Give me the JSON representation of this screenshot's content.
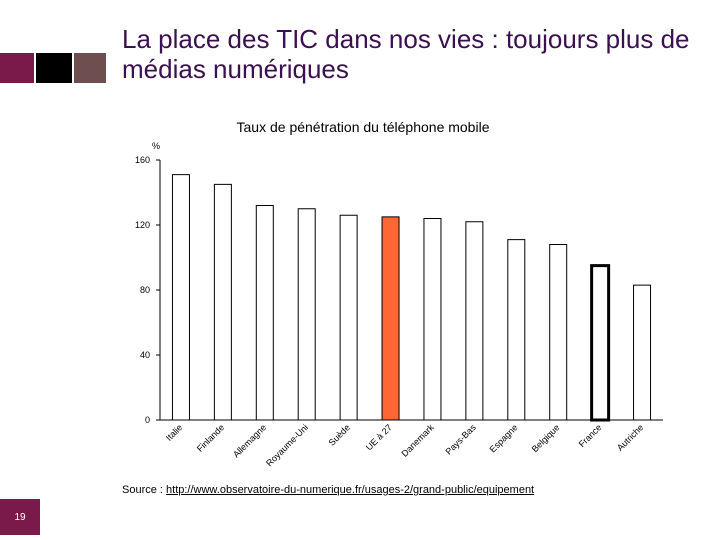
{
  "slide": {
    "title": "La place des TIC dans nos vies : toujours plus de médias numériques",
    "source_prefix": "Source : ",
    "source_url": "http://www.observatoire-du-numerique.fr/usages-2/grand-public/equipement",
    "page_number": "19"
  },
  "colors": {
    "accent": "#7a1a4a",
    "title": "#3a1050",
    "bar_default": "#ffffff",
    "bar_highlight": "#ff6633"
  },
  "chart_data": {
    "type": "bar",
    "title": "Taux de pénétration du téléphone mobile",
    "ylabel": "%",
    "ylim": [
      0,
      160
    ],
    "yticks": [
      0,
      40,
      80,
      120,
      160
    ],
    "grid": false,
    "legend": "none",
    "categories": [
      "Italie",
      "Finlande",
      "Allemagne",
      "Royaume-Uni",
      "Suède",
      "UE à 27",
      "Danemark",
      "Pays-Bas",
      "Espagne",
      "Belgique",
      "France",
      "Autriche"
    ],
    "values": [
      151,
      145,
      132,
      130,
      126,
      125,
      124,
      122,
      111,
      108,
      95,
      83
    ],
    "highlight": {
      "UE à 27": "orange",
      "France": "bold-outline"
    }
  }
}
